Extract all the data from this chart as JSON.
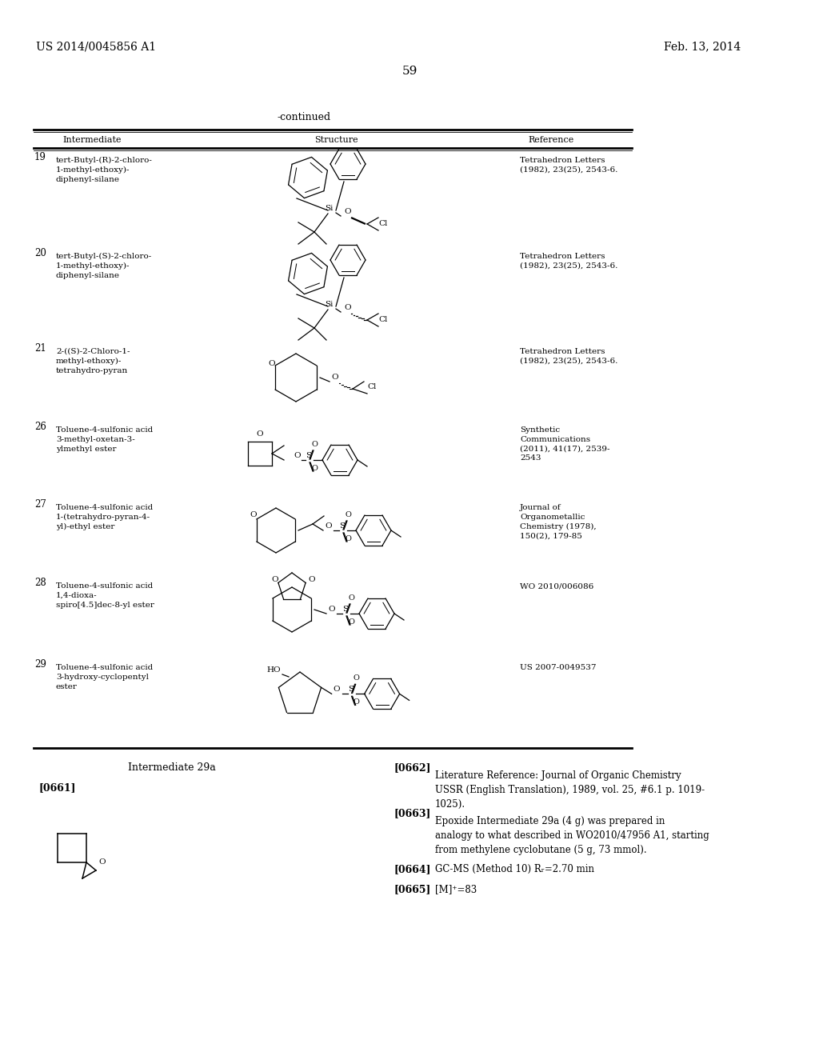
{
  "header_left": "US 2014/0045856 A1",
  "header_right": "Feb. 13, 2014",
  "page_number": "59",
  "continued_label": "-continued",
  "rows": [
    {
      "num": "19",
      "name": "tert-Butyl-(R)-2-chloro-\n1-methyl-ethoxy)-\ndiphenyl-silane",
      "reference": "Tetrahedron Letters\n(1982), 23(25), 2543-6."
    },
    {
      "num": "20",
      "name": "tert-Butyl-(S)-2-chloro-\n1-methyl-ethoxy)-\ndiphenyl-silane",
      "reference": "Tetrahedron Letters\n(1982), 23(25), 2543-6."
    },
    {
      "num": "21",
      "name": "2-((S)-2-Chloro-1-\nmethyl-ethoxy)-\ntetrahydro-pyran",
      "reference": "Tetrahedron Letters\n(1982), 23(25), 2543-6."
    },
    {
      "num": "26",
      "name": "Toluene-4-sulfonic acid\n3-methyl-oxetan-3-\nylmethyl ester",
      "reference": "Synthetic\nCommunications\n(2011), 41(17), 2539-\n2543"
    },
    {
      "num": "27",
      "name": "Toluene-4-sulfonic acid\n1-(tetrahydro-pyran-4-\nyl)-ethyl ester",
      "reference": "Journal of\nOrganometallic\nChemistry (1978),\n150(2), 179-85"
    },
    {
      "num": "28",
      "name": "Toluene-4-sulfonic acid\n1,4-dioxa-\nspiro[4.5]dec-8-yl ester",
      "reference": "WO 2010/006086"
    },
    {
      "num": "29",
      "name": "Toluene-4-sulfonic acid\n3-hydroxy-cyclopentyl\nester",
      "reference": "US 2007-0049537"
    }
  ],
  "bottom_section": {
    "intermediate_label": "Intermediate 29a",
    "text_0662": "Literature Reference: Journal of Organic Chemistry\nUSSR (English Translation), 1989, vol. 25, #6.1 p. 1019-\n1025).",
    "text_0663": "Epoxide Intermediate 29a (4 g) was prepared in\nanalogy to what described in WO2010/47956 A1, starting\nfrom methylene cyclobutane (5 g, 73 mmol).",
    "text_0664": "GC-MS (Method 10) Rᵣ=2.70 min",
    "text_0665": "[M]⁺=83"
  },
  "bg_color": "#ffffff",
  "text_color": "#000000"
}
